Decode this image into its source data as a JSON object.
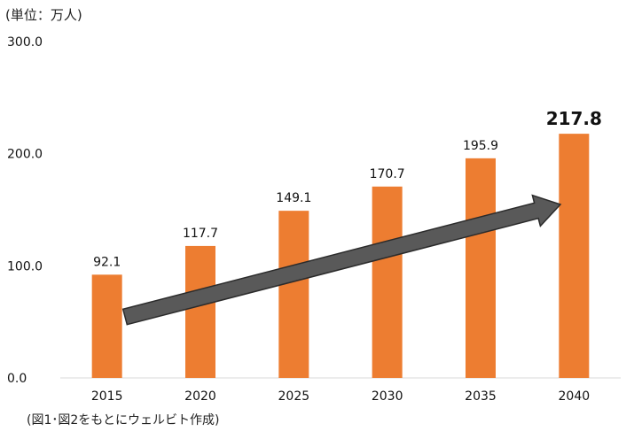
{
  "unit_label": "(単位：万人)",
  "source_label": "(図1･図2をもとにウェルビト作成)",
  "colors": {
    "bar": "#ED7D31",
    "arrow_fill": "#595959",
    "arrow_stroke": "#2b2b2b",
    "axis": "#D9D9D9"
  },
  "chart_data": {
    "type": "bar",
    "categories": [
      "2015",
      "2020",
      "2025",
      "2030",
      "2035",
      "2040"
    ],
    "values": [
      92.1,
      117.7,
      149.1,
      170.7,
      195.9,
      217.8
    ],
    "value_labels": [
      "92.1",
      "117.7",
      "149.1",
      "170.7",
      "195.9",
      "217.8"
    ],
    "highlighted_index": 5,
    "title": "",
    "xlabel": "",
    "ylabel": "",
    "ylim": [
      0,
      300
    ],
    "yticks": [
      0,
      100,
      200,
      300
    ],
    "ytick_labels": [
      "0.0",
      "100.0",
      "200.0",
      "300.0"
    ],
    "grid": false,
    "legend": "none",
    "annotation": "trend-arrow"
  }
}
